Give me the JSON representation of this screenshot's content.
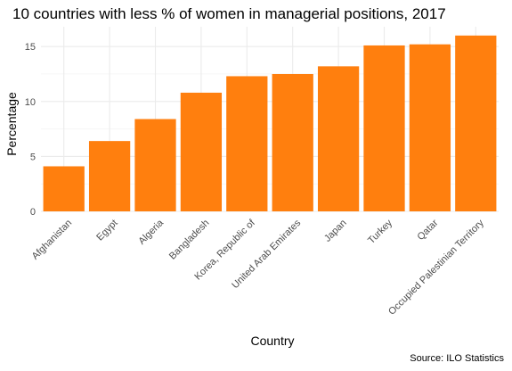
{
  "chart_data": {
    "type": "bar",
    "title": "10 countries with less % of women in managerial positions, 2017",
    "xlabel": "Country",
    "ylabel": "Percentage",
    "caption": "Source: ILO Statistics",
    "categories": [
      "Afghanistan",
      "Egypt",
      "Algeria",
      "Bangladesh",
      "Korea, Republic of",
      "United Arab Emirates",
      "Japan",
      "Turkey",
      "Qatar",
      "Occupied Palestinian Territory"
    ],
    "values": [
      4.1,
      6.4,
      8.4,
      10.8,
      12.3,
      12.5,
      13.2,
      15.1,
      15.2,
      16.0
    ],
    "ylim": [
      0,
      16.8
    ],
    "yticks": [
      0,
      5,
      10,
      15
    ],
    "bar_color": "#FF7F0E",
    "grid": true,
    "legend": "none"
  }
}
